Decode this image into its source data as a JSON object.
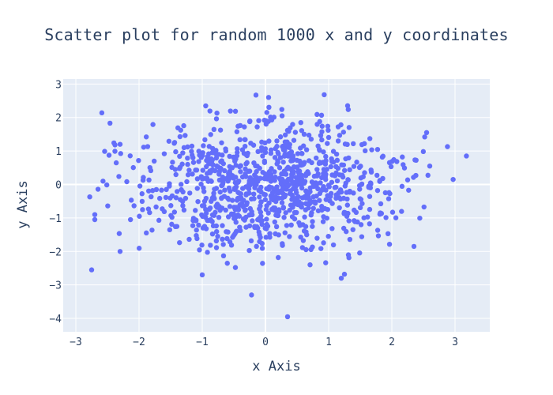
{
  "chart_data": {
    "type": "scatter",
    "title": "Scatter plot for random 1000 x and y coordinates",
    "xlabel": "x Axis",
    "ylabel": "y Axis",
    "xlim": [
      -3.2,
      3.55
    ],
    "ylim": [
      -4.4,
      3.15
    ],
    "x_ticks": [
      -3,
      -2,
      -1,
      0,
      1,
      2,
      3
    ],
    "x_tick_labels": [
      "−3",
      "−2",
      "−1",
      "0",
      "1",
      "2",
      "3"
    ],
    "y_ticks": [
      -4,
      -3,
      -2,
      -1,
      0,
      1,
      2,
      3
    ],
    "y_tick_labels": [
      "−4",
      "−3",
      "−2",
      "−1",
      "0",
      "1",
      "2",
      "3"
    ],
    "grid": true,
    "legend": "none",
    "point_count": 1000,
    "distribution": "standard normal (mean 0, sd 1) in both x and y",
    "marker_color": "#636efa",
    "plot_background": "#e5ecf6",
    "grid_color": "#ffffff",
    "notable_points": [
      {
        "x": 3.18,
        "y": 0.85
      },
      {
        "x": 2.97,
        "y": 0.15
      },
      {
        "x": 2.88,
        "y": 1.13
      },
      {
        "x": 2.6,
        "y": 0.55
      },
      {
        "x": 2.55,
        "y": 1.55
      },
      {
        "x": 2.52,
        "y": 1.42
      },
      {
        "x": 2.38,
        "y": 0.27
      },
      {
        "x": 2.35,
        "y": -1.85
      },
      {
        "x": -2.78,
        "y": -0.37
      },
      {
        "x": -2.75,
        "y": -2.55
      },
      {
        "x": -2.7,
        "y": -1.05
      },
      {
        "x": -2.7,
        "y": -0.9
      },
      {
        "x": -2.3,
        "y": 1.2
      },
      {
        "x": -2.3,
        "y": -2.0
      },
      {
        "x": 0.35,
        "y": -3.95
      },
      {
        "x": -0.22,
        "y": -3.3
      },
      {
        "x": 1.2,
        "y": -2.8
      },
      {
        "x": 1.25,
        "y": -2.68
      },
      {
        "x": -0.15,
        "y": 2.67
      },
      {
        "x": 0.93,
        "y": 2.68
      },
      {
        "x": 0.05,
        "y": 2.6
      },
      {
        "x": -1.0,
        "y": -2.7
      }
    ]
  }
}
